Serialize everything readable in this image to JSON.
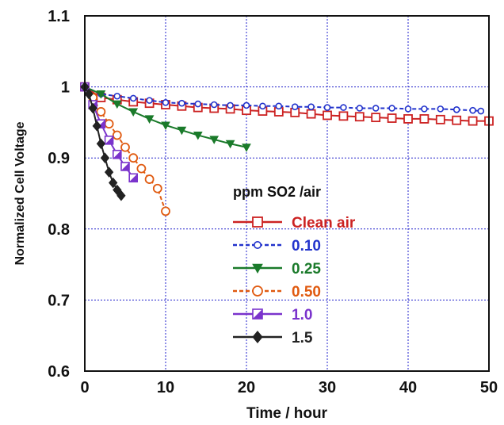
{
  "chart_data": {
    "type": "line",
    "xlabel": "Time / hour",
    "ylabel": "Normalized Cell Voltage",
    "xlim": [
      0,
      50
    ],
    "ylim": [
      0.6,
      1.1
    ],
    "x_ticks": [
      "0",
      "10",
      "20",
      "30",
      "40",
      "50"
    ],
    "y_ticks": [
      "0.6",
      "0.7",
      "0.8",
      "0.9",
      "1",
      "1.1"
    ],
    "grid": true,
    "legend_title": "ppm SO2 /air",
    "legend_placement": "center",
    "series": [
      {
        "name": "Clean air",
        "color": "#cc2222",
        "marker": "open-square",
        "dash": "solid",
        "points": [
          [
            0,
            1.0
          ],
          [
            2,
            0.985
          ],
          [
            4,
            0.982
          ],
          [
            6,
            0.979
          ],
          [
            8,
            0.977
          ],
          [
            10,
            0.975
          ],
          [
            12,
            0.973
          ],
          [
            14,
            0.971
          ],
          [
            16,
            0.97
          ],
          [
            18,
            0.969
          ],
          [
            20,
            0.967
          ],
          [
            22,
            0.966
          ],
          [
            24,
            0.965
          ],
          [
            26,
            0.964
          ],
          [
            28,
            0.962
          ],
          [
            30,
            0.96
          ],
          [
            32,
            0.959
          ],
          [
            34,
            0.958
          ],
          [
            36,
            0.957
          ],
          [
            38,
            0.956
          ],
          [
            40,
            0.955
          ],
          [
            42,
            0.955
          ],
          [
            44,
            0.954
          ],
          [
            46,
            0.953
          ],
          [
            48,
            0.952
          ],
          [
            50,
            0.952
          ]
        ]
      },
      {
        "name": "0.10",
        "color": "#2233cc",
        "marker": "small-open-circle",
        "dash": "dashed",
        "points": [
          [
            0,
            1.0
          ],
          [
            2,
            0.99
          ],
          [
            4,
            0.987
          ],
          [
            6,
            0.984
          ],
          [
            8,
            0.981
          ],
          [
            10,
            0.978
          ],
          [
            12,
            0.977
          ],
          [
            14,
            0.976
          ],
          [
            16,
            0.975
          ],
          [
            18,
            0.974
          ],
          [
            20,
            0.974
          ],
          [
            22,
            0.973
          ],
          [
            24,
            0.973
          ],
          [
            26,
            0.972
          ],
          [
            28,
            0.972
          ],
          [
            30,
            0.971
          ],
          [
            32,
            0.971
          ],
          [
            34,
            0.97
          ],
          [
            36,
            0.97
          ],
          [
            38,
            0.97
          ],
          [
            40,
            0.969
          ],
          [
            42,
            0.969
          ],
          [
            44,
            0.969
          ],
          [
            46,
            0.968
          ],
          [
            48,
            0.967
          ],
          [
            49,
            0.966
          ]
        ]
      },
      {
        "name": "0.25",
        "color": "#1a7a2a",
        "marker": "filled-triangle-down",
        "dash": "solid",
        "points": [
          [
            0,
            1.0
          ],
          [
            2,
            0.99
          ],
          [
            4,
            0.976
          ],
          [
            6,
            0.965
          ],
          [
            8,
            0.955
          ],
          [
            10,
            0.946
          ],
          [
            12,
            0.939
          ],
          [
            14,
            0.932
          ],
          [
            16,
            0.926
          ],
          [
            18,
            0.92
          ],
          [
            20,
            0.915
          ]
        ]
      },
      {
        "name": "0.50",
        "color": "#e05a10",
        "marker": "open-circle",
        "dash": "dashed",
        "points": [
          [
            0,
            1.0
          ],
          [
            1,
            0.985
          ],
          [
            2,
            0.965
          ],
          [
            3,
            0.948
          ],
          [
            4,
            0.932
          ],
          [
            5,
            0.915
          ],
          [
            6,
            0.9
          ],
          [
            7,
            0.885
          ],
          [
            8,
            0.87
          ],
          [
            9,
            0.857
          ],
          [
            10,
            0.825
          ]
        ]
      },
      {
        "name": "1.0",
        "color": "#7a33cc",
        "marker": "half-filled-square",
        "dash": "solid",
        "points": [
          [
            0,
            1.0
          ],
          [
            1,
            0.975
          ],
          [
            2,
            0.948
          ],
          [
            3,
            0.925
          ],
          [
            4,
            0.905
          ],
          [
            5,
            0.888
          ],
          [
            6,
            0.872
          ]
        ]
      },
      {
        "name": "1.5",
        "color": "#222222",
        "marker": "filled-diamond",
        "dash": "solid",
        "points": [
          [
            0,
            1.0
          ],
          [
            0.5,
            0.99
          ],
          [
            1,
            0.97
          ],
          [
            1.5,
            0.945
          ],
          [
            2,
            0.92
          ],
          [
            2.5,
            0.9
          ],
          [
            3,
            0.88
          ],
          [
            3.5,
            0.865
          ],
          [
            4,
            0.855
          ],
          [
            4.5,
            0.847
          ]
        ]
      }
    ]
  }
}
